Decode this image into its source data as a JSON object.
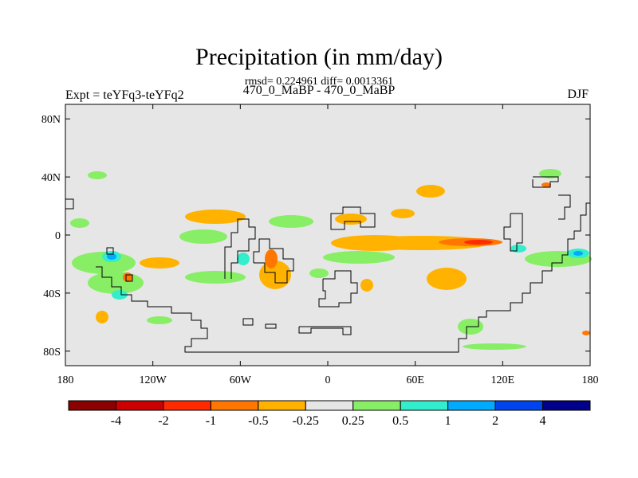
{
  "title": "Precipitation (in mm/day)",
  "subtitle": "rmsd= 0.224961 diff= 0.0013361",
  "left_label": "Expt = teYFq3-teYFq2",
  "center_label": "470_0_MaBP - 470_0_MaBP",
  "right_label": "DJF",
  "map": {
    "lat_ticks": [
      {
        "value": 80,
        "label": "80N"
      },
      {
        "value": 40,
        "label": "40N"
      },
      {
        "value": 0,
        "label": "0"
      },
      {
        "value": -40,
        "label": "40S"
      },
      {
        "value": -80,
        "label": "80S"
      }
    ],
    "lon_ticks": [
      {
        "value": -180,
        "label": "180"
      },
      {
        "value": -120,
        "label": "120W"
      },
      {
        "value": -60,
        "label": "60W"
      },
      {
        "value": 0,
        "label": "0"
      },
      {
        "value": 60,
        "label": "60E"
      },
      {
        "value": 120,
        "label": "120E"
      },
      {
        "value": 180,
        "label": "180"
      }
    ],
    "lat_range": [
      -90,
      90
    ],
    "lon_range": [
      -180,
      180
    ],
    "background_color": "#e6e6e6"
  },
  "colorbar": {
    "colors": [
      "#8b0000",
      "#cc0000",
      "#ff2a00",
      "#ff7700",
      "#ffb300",
      "#e6e6e6",
      "#88ee66",
      "#33eecc",
      "#00aaff",
      "#0044ee",
      "#000088"
    ],
    "labels": [
      "-4",
      "-2",
      "-1",
      "-0.5",
      "-0.25",
      "0.25",
      "0.5",
      "1",
      "2",
      "4"
    ]
  }
}
